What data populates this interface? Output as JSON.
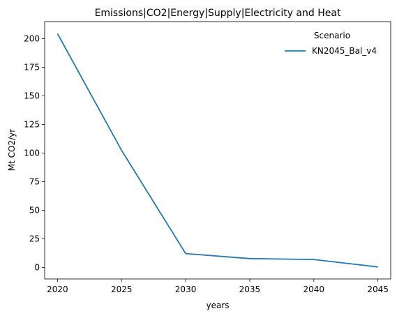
{
  "chart_data": {
    "type": "line",
    "title": "Emissions|CO2|Energy|Supply|Electricity and Heat",
    "xlabel": "years",
    "ylabel": "Mt CO2/yr",
    "x": [
      2020,
      2025,
      2030,
      2035,
      2040,
      2045
    ],
    "xticks": [
      "2020",
      "2025",
      "2030",
      "2035",
      "2040",
      "2045"
    ],
    "yticks": [
      "0",
      "25",
      "50",
      "75",
      "100",
      "125",
      "150",
      "175",
      "200"
    ],
    "xlim": [
      2019,
      2046
    ],
    "ylim": [
      -10,
      215
    ],
    "series": [
      {
        "name": "KN2045_Bal_v4",
        "color": "#1f77b4",
        "values": [
          204.5,
          102.5,
          12.2,
          7.8,
          7.0,
          0.5
        ]
      }
    ],
    "legend": {
      "title": "Scenario",
      "placement": "top-right"
    },
    "grid": false
  }
}
